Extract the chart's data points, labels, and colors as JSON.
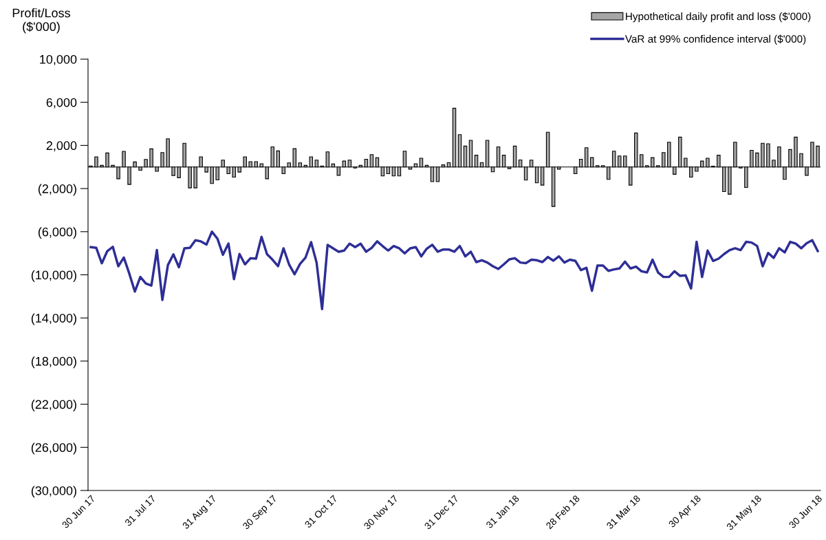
{
  "chart_data": {
    "type": "bar",
    "ylabel": "Profit/Loss\n($'000)",
    "categories": [
      "30 Jun 17",
      null,
      null,
      null,
      null,
      null,
      null,
      null,
      null,
      null,
      null,
      "31 Jul 17",
      null,
      null,
      null,
      null,
      null,
      null,
      null,
      null,
      null,
      null,
      "31 Aug 17",
      null,
      null,
      null,
      null,
      null,
      null,
      null,
      null,
      null,
      null,
      "30 Sep 17",
      null,
      null,
      null,
      null,
      null,
      null,
      null,
      null,
      null,
      null,
      "31 Oct 17",
      null,
      null,
      null,
      null,
      null,
      null,
      null,
      null,
      null,
      null,
      "30 Nov 17",
      null,
      null,
      null,
      null,
      null,
      null,
      null,
      null,
      null,
      null,
      "31 Dec 17",
      null,
      null,
      null,
      null,
      null,
      null,
      null,
      null,
      null,
      null,
      "31 Jan 18",
      null,
      null,
      null,
      null,
      null,
      null,
      null,
      null,
      null,
      null,
      "28 Feb 18",
      null,
      null,
      null,
      null,
      null,
      null,
      null,
      null,
      null,
      null,
      "31 Mar 18",
      null,
      null,
      null,
      null,
      null,
      null,
      null,
      null,
      null,
      null,
      "30 Apr 18",
      null,
      null,
      null,
      null,
      null,
      null,
      null,
      null,
      null,
      null,
      "31 May 18",
      null,
      null,
      null,
      null,
      null,
      null,
      null,
      null,
      null,
      null,
      "30 Jun 18"
    ],
    "series": [
      {
        "name": "Hypothetical daily profit and loss ($'000)",
        "color": "#a6a6a6",
        "values": [
          100,
          940,
          150,
          1300,
          150,
          -1090,
          1450,
          -1620,
          470,
          -300,
          700,
          1680,
          -400,
          1340,
          2620,
          -790,
          -1000,
          2200,
          -1940,
          -1940,
          940,
          -470,
          -1530,
          -1200,
          640,
          -620,
          -940,
          -470,
          940,
          490,
          490,
          300,
          -1090,
          1870,
          1490,
          -620,
          380,
          1700,
          380,
          150,
          940,
          640,
          100,
          1400,
          280,
          -770,
          550,
          640,
          -100,
          150,
          720,
          1150,
          850,
          -830,
          -620,
          -830,
          -830,
          1470,
          -200,
          300,
          810,
          150,
          -1360,
          -1360,
          200,
          400,
          5450,
          3000,
          1940,
          2470,
          1090,
          400,
          2470,
          -450,
          1870,
          1090,
          -150,
          1940,
          650,
          -1210,
          640,
          -1470,
          -1680,
          3220,
          -3660,
          -200,
          null,
          null,
          -620,
          720,
          1790,
          870,
          130,
          130,
          -1150,
          1470,
          1020,
          1020,
          -1680,
          3150,
          1150,
          130,
          870,
          130,
          1340,
          2300,
          -680,
          2770,
          810,
          -940,
          -400,
          550,
          810,
          80,
          1090,
          -2280,
          -2530,
          2300,
          -100,
          -1900,
          1550,
          1300,
          2200,
          2150,
          640,
          1870,
          -1150,
          1620,
          2770,
          1240,
          -770,
          2300,
          1940
        ]
      },
      {
        "name": "VaR at 99% confidence interval ($'000)",
        "type": "line",
        "color": "#2e2e96",
        "values": [
          -7430,
          -7500,
          -8930,
          -7800,
          -7400,
          -9200,
          -8400,
          -9900,
          -11550,
          -10200,
          -10800,
          -11000,
          -7700,
          -12330,
          -9100,
          -8100,
          -9300,
          -7540,
          -7500,
          -6790,
          -6900,
          -7200,
          -6000,
          -6650,
          -8140,
          -7100,
          -10400,
          -8070,
          -9030,
          -8460,
          -8500,
          -6480,
          -8090,
          -8600,
          -9200,
          -7540,
          -9030,
          -9950,
          -8990,
          -8390,
          -6970,
          -8860,
          -13180,
          -7220,
          -7540,
          -7860,
          -7750,
          -7110,
          -7430,
          -7110,
          -7860,
          -7500,
          -6900,
          -7340,
          -7750,
          -7330,
          -7540,
          -8010,
          -7540,
          -7430,
          -8290,
          -7580,
          -7220,
          -7860,
          -7650,
          -7650,
          -7860,
          -7330,
          -8290,
          -7860,
          -8820,
          -8650,
          -8860,
          -9200,
          -9460,
          -9030,
          -8560,
          -8460,
          -8860,
          -8920,
          -8600,
          -8650,
          -8820,
          -8350,
          -8690,
          -8290,
          -8860,
          -8600,
          -8710,
          -9560,
          -9350,
          -11480,
          -9140,
          -9140,
          -9630,
          -9500,
          -9410,
          -8780,
          -9410,
          -9240,
          -9670,
          -9780,
          -8600,
          -9780,
          -10200,
          -10200,
          -9670,
          -10100,
          -10050,
          -11270,
          -6940,
          -10200,
          -7750,
          -8710,
          -8500,
          -8070,
          -7710,
          -7540,
          -7710,
          -6940,
          -7010,
          -7330,
          -9200,
          -7970,
          -8430,
          -7540,
          -7920,
          -6940,
          -7110,
          -7540,
          -7070,
          -6790,
          -7800
        ]
      }
    ],
    "ylim": [
      -30000,
      10000
    ],
    "yticks": [
      {
        "value": 10000,
        "label": "10,000"
      },
      {
        "value": 6000,
        "label": "6,000"
      },
      {
        "value": 2000,
        "label": "2,000"
      },
      {
        "value": -2000,
        "label": "(2,000)"
      },
      {
        "value": -6000,
        "label": "(6,000)"
      },
      {
        "value": -10000,
        "label": "(10,000)"
      },
      {
        "value": -14000,
        "label": "(14,000)"
      },
      {
        "value": -18000,
        "label": "(18,000)"
      },
      {
        "value": -22000,
        "label": "(22,000)"
      },
      {
        "value": -26000,
        "label": "(26,000)"
      },
      {
        "value": -30000,
        "label": "(30,000)"
      }
    ],
    "ref_lines": [
      {
        "axis": "y",
        "value": 0,
        "color": "#000000"
      }
    ],
    "legend": "top right",
    "grid": false
  }
}
